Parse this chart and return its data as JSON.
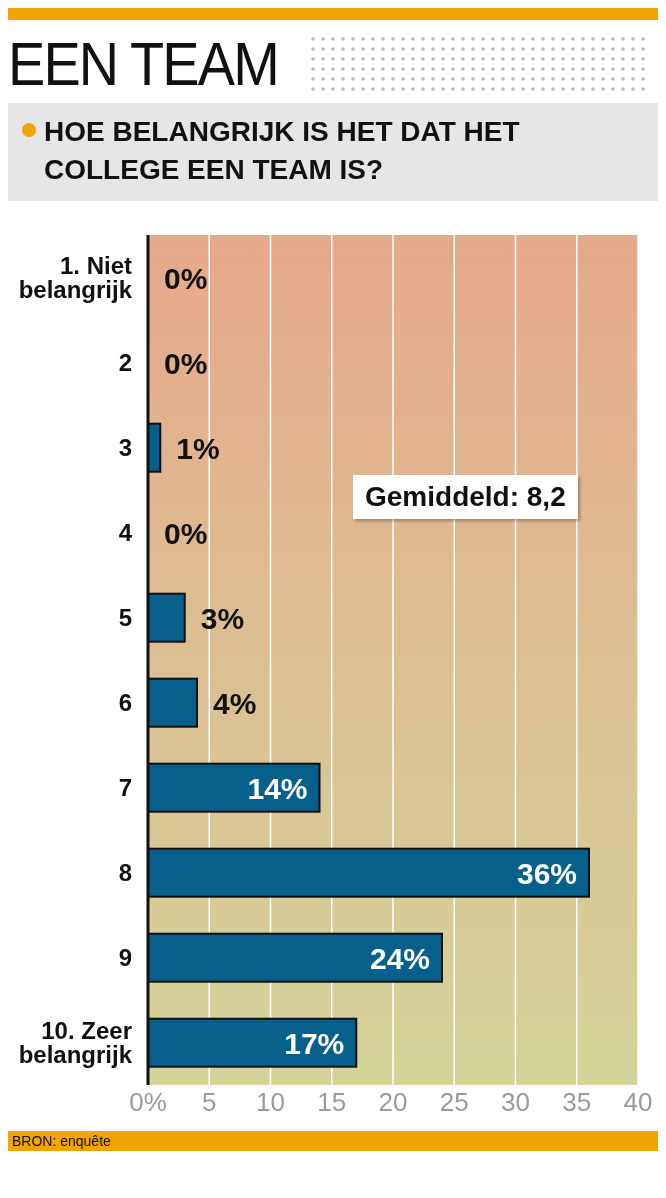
{
  "chart_data": {
    "type": "bar",
    "orientation": "horizontal",
    "title": "EEN TEAM",
    "subtitle": "HOE BELANGRIJK IS HET DAT HET COLLEGE EEN TEAM IS?",
    "categories": [
      "1. Niet belangrijk",
      "2",
      "3",
      "4",
      "5",
      "6",
      "7",
      "8",
      "9",
      "10. Zeer belangrijk"
    ],
    "values": [
      0,
      0,
      1,
      0,
      3,
      4,
      14,
      36,
      24,
      17
    ],
    "value_labels": [
      "0%",
      "0%",
      "1%",
      "0%",
      "3%",
      "4%",
      "14%",
      "36%",
      "24%",
      "17%"
    ],
    "color": "#075f8c",
    "xlim": [
      0,
      40
    ],
    "xticks": [
      {
        "value": 0,
        "label": "0%"
      },
      5,
      10,
      15,
      20,
      25,
      30,
      35,
      40
    ],
    "grid": "x",
    "annotations": [
      "Gemiddeld: 8,2",
      "BRON: enquête"
    ]
  }
}
